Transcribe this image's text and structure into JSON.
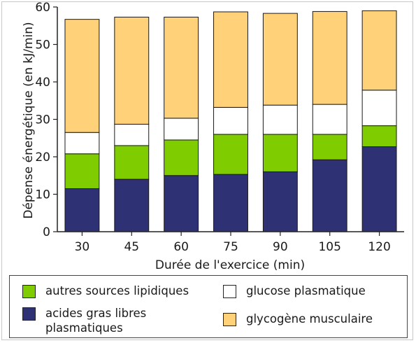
{
  "chart_data": {
    "type": "bar",
    "stacked": true,
    "categories": [
      "30",
      "45",
      "60",
      "75",
      "90",
      "105",
      "120"
    ],
    "xlabel": "Durée de l'exercice (min)",
    "ylabel": "Dépense énergétique (en kJ/min)",
    "ylim": [
      0,
      60
    ],
    "yticks": [
      0,
      10,
      20,
      30,
      40,
      50,
      60
    ],
    "grid": false,
    "legend_position": "bottom",
    "series": [
      {
        "name": "acides gras libres plasmatiques",
        "color": "#2e3173",
        "values": [
          11.5,
          14.0,
          15.0,
          15.3,
          16.0,
          19.2,
          22.7
        ]
      },
      {
        "name": "autres sources lipidiques",
        "color": "#7fcc00",
        "values": [
          9.3,
          9.0,
          9.5,
          10.7,
          10.0,
          6.8,
          5.6
        ]
      },
      {
        "name": "glucose plasmatique",
        "color": "#ffffff",
        "values": [
          5.7,
          5.7,
          5.8,
          7.2,
          7.8,
          8.0,
          9.5
        ]
      },
      {
        "name": "glycogène musculaire",
        "color": "#ffd27a",
        "values": [
          30.2,
          28.6,
          27.0,
          25.5,
          24.5,
          24.8,
          21.2
        ]
      }
    ]
  },
  "legend": {
    "items": [
      {
        "label_lines": [
          "autres sources lipidiques"
        ],
        "color": "#7fcc00"
      },
      {
        "label_lines": [
          "glucose plasmatique"
        ],
        "color": "#ffffff"
      },
      {
        "label_lines": [
          "acides gras libres",
          "plasmatiques"
        ],
        "color": "#2e3173"
      },
      {
        "label_lines": [
          "glycogène musculaire"
        ],
        "color": "#ffd27a"
      }
    ]
  }
}
